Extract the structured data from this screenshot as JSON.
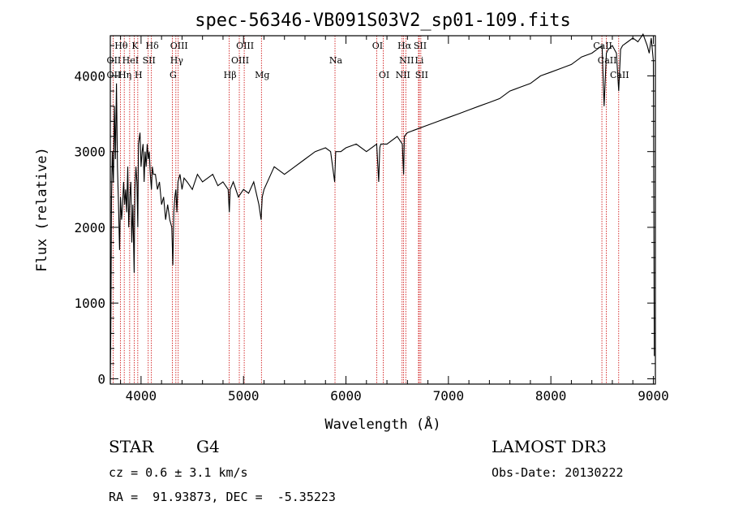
{
  "chart_data": {
    "type": "line",
    "title": "spec-56346-VB091S03V2_sp01-109.fits",
    "xlabel": "Wavelength (Å)",
    "ylabel": "Flux (relative)",
    "xlim": [
      3700,
      9020
    ],
    "ylim": [
      -70,
      4530
    ],
    "xticks": [
      4000,
      5000,
      6000,
      7000,
      8000,
      9000
    ],
    "yticks": [
      0,
      1000,
      2000,
      3000,
      4000
    ],
    "spectrum": {
      "x": [
        3700,
        3705,
        3712,
        3720,
        3730,
        3740,
        3750,
        3760,
        3770,
        3780,
        3790,
        3800,
        3810,
        3820,
        3830,
        3840,
        3850,
        3860,
        3870,
        3880,
        3890,
        3900,
        3910,
        3920,
        3933,
        3940,
        3950,
        3960,
        3968,
        3975,
        3990,
        4000,
        4010,
        4020,
        4030,
        4040,
        4050,
        4060,
        4070,
        4080,
        4090,
        4101,
        4110,
        4120,
        4140,
        4160,
        4180,
        4200,
        4220,
        4240,
        4260,
        4280,
        4300,
        4310,
        4320,
        4330,
        4340,
        4350,
        4360,
        4380,
        4400,
        4420,
        4450,
        4500,
        4550,
        4600,
        4650,
        4700,
        4750,
        4800,
        4850,
        4861,
        4870,
        4900,
        4950,
        5000,
        5050,
        5100,
        5150,
        5172,
        5183,
        5200,
        5250,
        5300,
        5400,
        5500,
        5600,
        5700,
        5800,
        5850,
        5890,
        5900,
        5950,
        6000,
        6100,
        6200,
        6300,
        6320,
        6330,
        6340,
        6400,
        6500,
        6550,
        6563,
        6570,
        6600,
        6700,
        6800,
        6900,
        7000,
        7100,
        7200,
        7300,
        7400,
        7500,
        7600,
        7700,
        7800,
        7900,
        8000,
        8100,
        8200,
        8300,
        8400,
        8450,
        8500,
        8520,
        8542,
        8560,
        8600,
        8640,
        8662,
        8680,
        8700,
        8750,
        8800,
        8850,
        8900,
        8940,
        8960,
        8980,
        9000,
        9010
      ],
      "y": [
        0,
        600,
        2400,
        3000,
        2600,
        3600,
        2900,
        3900,
        2800,
        2300,
        1700,
        2400,
        2100,
        2300,
        2600,
        2300,
        2500,
        2200,
        2800,
        2000,
        2400,
        2600,
        1800,
        2300,
        1400,
        2500,
        2800,
        2600,
        2000,
        3100,
        3250,
        2800,
        3000,
        3100,
        2600,
        3000,
        2800,
        3100,
        2900,
        3000,
        2700,
        2500,
        2800,
        2700,
        2700,
        2500,
        2600,
        2300,
        2400,
        2100,
        2300,
        2100,
        2000,
        1500,
        2200,
        2400,
        2500,
        2200,
        2600,
        2700,
        2500,
        2650,
        2600,
        2500,
        2700,
        2600,
        2650,
        2700,
        2550,
        2600,
        2500,
        2200,
        2500,
        2600,
        2400,
        2500,
        2450,
        2600,
        2300,
        2100,
        2400,
        2500,
        2650,
        2800,
        2700,
        2800,
        2900,
        3000,
        3050,
        3000,
        2600,
        3000,
        3000,
        3050,
        3100,
        3000,
        3100,
        2600,
        3050,
        3100,
        3100,
        3200,
        3100,
        2700,
        3200,
        3250,
        3300,
        3350,
        3400,
        3450,
        3500,
        3550,
        3600,
        3650,
        3700,
        3800,
        3850,
        3900,
        4000,
        4050,
        4100,
        4150,
        4250,
        4300,
        4350,
        4400,
        3600,
        4300,
        4350,
        4400,
        4300,
        3800,
        4350,
        4400,
        4450,
        4500,
        4450,
        4550,
        4400,
        4300,
        4500,
        4200,
        300
      ]
    },
    "line_labels": [
      {
        "text": "Hθ",
        "wavelength": 3798,
        "row": 1
      },
      {
        "text": "Hη",
        "wavelength": 3836,
        "row": 3
      },
      {
        "text": "K",
        "wavelength": 3933,
        "row": 1
      },
      {
        "text": "H",
        "wavelength": 3968,
        "row": 3
      },
      {
        "text": "Hδ",
        "wavelength": 4101,
        "row": 1
      },
      {
        "text": "OII",
        "wavelength": 3727,
        "row": 2
      },
      {
        "text": "OII",
        "wavelength": 3727,
        "row": 3
      },
      {
        "text": "HeI",
        "wavelength": 3889,
        "row": 2
      },
      {
        "text": "SII",
        "wavelength": 4070,
        "row": 2
      },
      {
        "text": "OIII",
        "wavelength": 4363,
        "row": 1
      },
      {
        "text": "Hγ",
        "wavelength": 4340,
        "row": 2
      },
      {
        "text": "G",
        "wavelength": 4305,
        "row": 3
      },
      {
        "text": "Hβ",
        "wavelength": 4861,
        "row": 3
      },
      {
        "text": "OIII",
        "wavelength": 5007,
        "row": 1
      },
      {
        "text": "OIII",
        "wavelength": 4959,
        "row": 2
      },
      {
        "text": "Mg",
        "wavelength": 5175,
        "row": 3
      },
      {
        "text": "Na",
        "wavelength": 5893,
        "row": 2
      },
      {
        "text": "OI",
        "wavelength": 6300,
        "row": 1
      },
      {
        "text": "OI",
        "wavelength": 6364,
        "row": 3
      },
      {
        "text": "Hα",
        "wavelength": 6563,
        "row": 1
      },
      {
        "text": "SII",
        "wavelength": 6716,
        "row": 1
      },
      {
        "text": "NII",
        "wavelength": 6584,
        "row": 2
      },
      {
        "text": "Li",
        "wavelength": 6708,
        "row": 2
      },
      {
        "text": "NII",
        "wavelength": 6548,
        "row": 3
      },
      {
        "text": "SII",
        "wavelength": 6731,
        "row": 3
      },
      {
        "text": "CaII",
        "wavelength": 8498,
        "row": 1
      },
      {
        "text": "CaII",
        "wavelength": 8542,
        "row": 2
      },
      {
        "text": "CaII",
        "wavelength": 8662,
        "row": 3
      }
    ],
    "line_markers": [
      3727,
      3798,
      3836,
      3889,
      3933,
      3968,
      4070,
      4101,
      4305,
      4340,
      4363,
      4861,
      4959,
      5007,
      5175,
      5893,
      6300,
      6364,
      6548,
      6563,
      6584,
      6708,
      6716,
      6731,
      8498,
      8542,
      8662
    ],
    "marker_color": "#cc0000",
    "line_color": "#000000"
  },
  "info": {
    "object_class": "STAR",
    "subclass": "G4",
    "survey": "LAMOST DR3",
    "redshift": "cz = 0.6 ± 3.1 km/s",
    "obs_date": "Obs-Date: 20130222",
    "coords": "RA =  91.93873, DEC =  -5.35223"
  }
}
